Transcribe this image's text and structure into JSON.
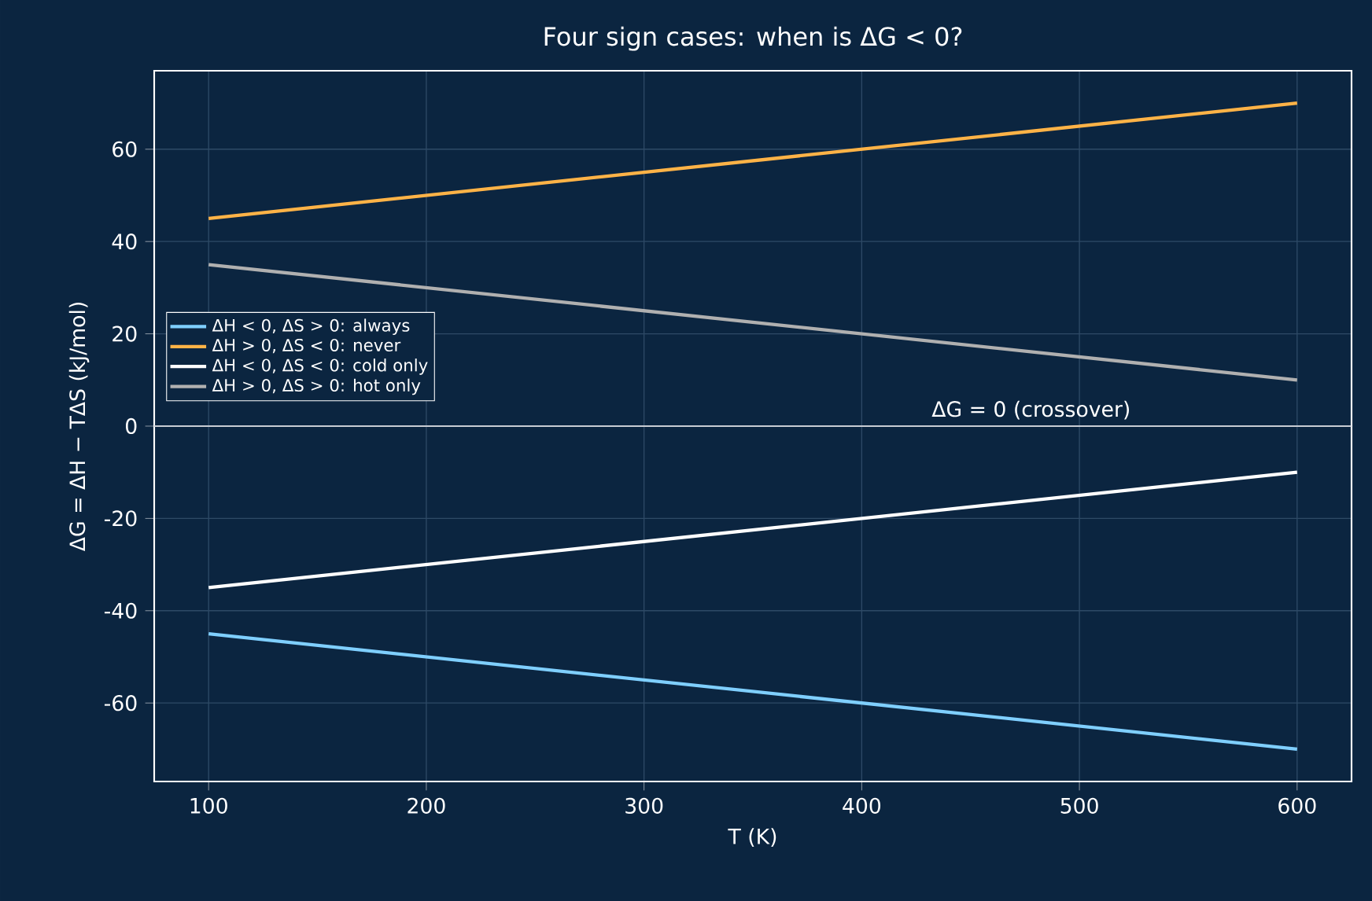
{
  "chart_data": {
    "type": "line",
    "title": "Four sign cases: when is ΔG < 0?",
    "xlabel": "T  (K)",
    "ylabel": "ΔG = ΔH − TΔS  (kJ/mol)",
    "x": [
      100,
      600
    ],
    "series": [
      {
        "name": "ΔH < 0,  ΔS > 0: always",
        "color": "#7fcfff",
        "values": [
          -45,
          -70
        ]
      },
      {
        "name": "ΔH > 0,  ΔS < 0: never",
        "color": "#ffb347",
        "values": [
          45,
          70
        ]
      },
      {
        "name": "ΔH < 0,  ΔS < 0: cold only",
        "color": "#ffffff",
        "values": [
          -35,
          -10
        ]
      },
      {
        "name": "ΔH > 0,  ΔS > 0: hot only",
        "color": "#b0b0b0",
        "values": [
          35,
          10
        ]
      }
    ],
    "xlim": [
      75,
      625
    ],
    "ylim": [
      -77,
      77
    ],
    "xticks": [
      100,
      200,
      300,
      400,
      500,
      600
    ],
    "yticks": [
      -60,
      -40,
      -20,
      0,
      20,
      40,
      60
    ],
    "ref_lines": [
      {
        "axis": "y",
        "value": 0,
        "color": "#c8ccd4"
      }
    ],
    "annotations": [
      {
        "text": "ΔG = 0 (crossover)",
        "x": 430,
        "y": 0
      }
    ],
    "grid": true,
    "legend": "center left",
    "marker": "none",
    "line_style": "solid"
  }
}
